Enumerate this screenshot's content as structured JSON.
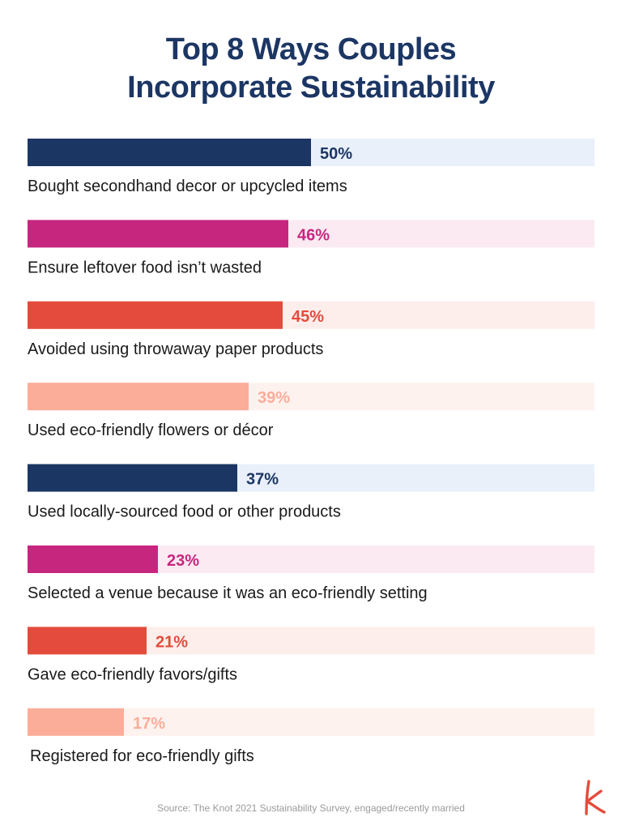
{
  "title": {
    "line1": "Top 8 Ways Couples",
    "line2": "Incorporate Sustainability"
  },
  "source": "Source: The Knot 2021 Sustainability Survey, engaged/recently married",
  "logo_icon": "knot-k-logo-icon",
  "colors": {
    "navy": "#1c3664",
    "magenta": "#c7267f",
    "red": "#e54b3c",
    "peach": "#fbad9a",
    "navy_track": "#e9f0fa",
    "magenta_track": "#fbeaf2",
    "red_track": "#fdeeeb",
    "peach_track": "#fef2ef",
    "label": "#1a1a1a"
  },
  "chart_data": {
    "type": "bar",
    "orientation": "horizontal",
    "xlim": [
      0,
      100
    ],
    "categories": [
      "Bought secondhand decor or upcycled items",
      "Ensure leftover food isn’t wasted",
      "Avoided using throwaway paper products",
      "Used eco-friendly flowers or décor",
      "Used locally-sourced food or other products",
      "Selected a venue because it was an eco-friendly setting",
      "Gave eco-friendly favors/gifts",
      "Registered for eco-friendly gifts"
    ],
    "values": [
      50,
      46,
      45,
      39,
      37,
      23,
      21,
      17
    ],
    "value_labels": [
      "50%",
      "46%",
      "45%",
      "39%",
      "37%",
      "23%",
      "21%",
      "17%"
    ],
    "bar_colors": [
      "#1c3664",
      "#c7267f",
      "#e54b3c",
      "#fbad9a",
      "#1c3664",
      "#c7267f",
      "#e54b3c",
      "#fbad9a"
    ],
    "track_colors": [
      "#e9f0fa",
      "#fbeaf2",
      "#fdeeeb",
      "#fef2ef",
      "#e9f0fa",
      "#fbeaf2",
      "#fdeeeb",
      "#fef2ef"
    ],
    "grid": false,
    "legend": "none"
  }
}
